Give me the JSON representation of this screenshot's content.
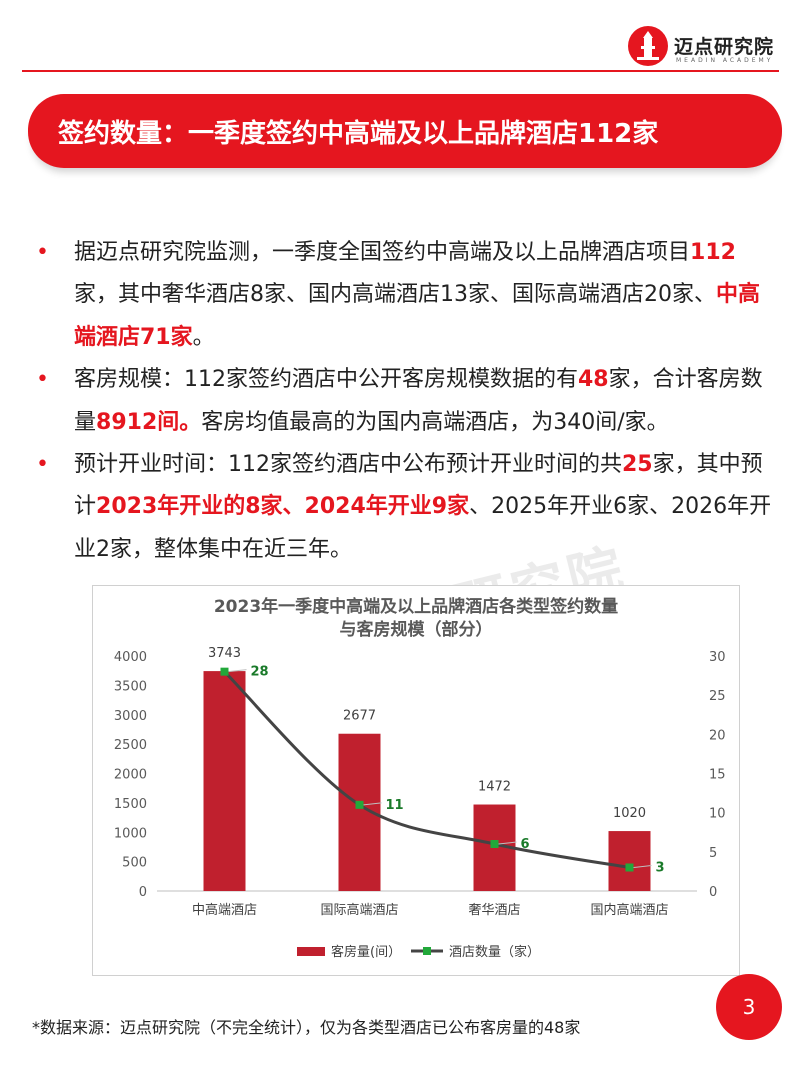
{
  "header": {
    "logo_name": "迈点研究院",
    "logo_sub": "MEADIN ACADEMY"
  },
  "banner": {
    "title": "签约数量：一季度签约中高端及以上品牌酒店112家"
  },
  "bullets": [
    {
      "segments": [
        {
          "text": "据迈点研究院监测，一季度全国签约中高端及以上品牌酒店项目",
          "hl": false
        },
        {
          "text": "112",
          "hl": true
        },
        {
          "text": "家，其中奢华酒店8家、国内高端酒店13家、国际高端酒店20家、",
          "hl": false
        },
        {
          "text": "中高端酒店71家",
          "hl": true
        },
        {
          "text": "。",
          "hl": false
        }
      ]
    },
    {
      "segments": [
        {
          "text": "客房规模：112家签约酒店中公开客房规模数据的有",
          "hl": false
        },
        {
          "text": "48",
          "hl": true
        },
        {
          "text": "家，合计客房数量",
          "hl": false
        },
        {
          "text": "8912间。",
          "hl": true
        },
        {
          "text": "客房均值最高的为国内高端酒店，为340间/家。",
          "hl": false
        }
      ]
    },
    {
      "segments": [
        {
          "text": "预计开业时间：112家签约酒店中公布预计开业时间的共",
          "hl": false
        },
        {
          "text": "25",
          "hl": true
        },
        {
          "text": "家，其中预计",
          "hl": false
        },
        {
          "text": "2023年开业的8家、2024年开业9家",
          "hl": true
        },
        {
          "text": "、2025年开业6家、2026年开业2家，整体集中在近三年。",
          "hl": false
        }
      ]
    }
  ],
  "chart_data": {
    "type": "bar",
    "title_line1": "2023年一季度中高端及以上品牌酒店各类型签约数量",
    "title_line2": "与客房规模（部分）",
    "categories": [
      "中高端酒店",
      "国际高端酒店",
      "奢华酒店",
      "国内高端酒店"
    ],
    "series": [
      {
        "name": "客房量(间）",
        "type": "bar",
        "axis": "left",
        "values": [
          3743,
          2677,
          1472,
          1020
        ],
        "color": "#c0202e"
      },
      {
        "name": "酒店数量（家）",
        "type": "line",
        "axis": "right",
        "values": [
          28,
          11,
          6,
          3
        ],
        "color": "#444444",
        "marker_color": "#22a83a",
        "label_color": "#1a7a2a"
      }
    ],
    "left_axis": {
      "min": 0,
      "max": 4000,
      "ticks": [
        0,
        500,
        1000,
        1500,
        2000,
        2500,
        3000,
        3500,
        4000
      ]
    },
    "right_axis": {
      "min": 0,
      "max": 30,
      "ticks": [
        0,
        5,
        10,
        15,
        20,
        25,
        30
      ]
    },
    "grid": false,
    "legend_position": "bottom"
  },
  "watermark": {
    "text": "迈点研究院",
    "sub": "MEADIN ACADEMY"
  },
  "page_number": "3",
  "footnote": "*数据来源：迈点研究院（不完全统计），仅为各类型酒店已公布客房量的48家"
}
